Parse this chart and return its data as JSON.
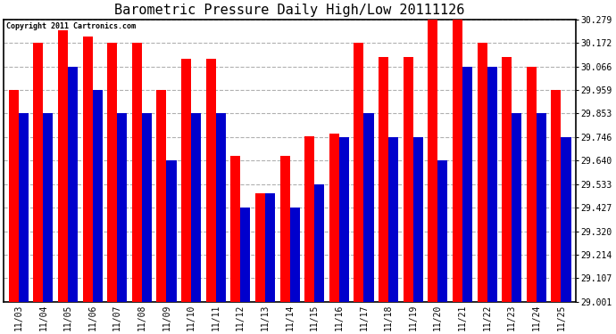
{
  "title": "Barometric Pressure Daily High/Low 20111126",
  "copyright_text": "Copyright 2011 Cartronics.com",
  "dates": [
    "11/03",
    "11/04",
    "11/05",
    "11/06",
    "11/07",
    "11/08",
    "11/09",
    "11/10",
    "11/11",
    "11/12",
    "11/13",
    "11/14",
    "11/15",
    "11/16",
    "11/17",
    "11/18",
    "11/19",
    "11/20",
    "11/21",
    "11/22",
    "11/23",
    "11/24",
    "11/25"
  ],
  "highs": [
    29.96,
    30.172,
    30.23,
    30.2,
    30.172,
    30.172,
    29.959,
    30.1,
    30.1,
    29.66,
    29.49,
    29.66,
    29.75,
    29.76,
    30.172,
    30.107,
    30.107,
    30.279,
    30.279,
    30.172,
    30.107,
    30.066,
    29.959
  ],
  "lows": [
    29.853,
    29.853,
    30.066,
    29.959,
    29.853,
    29.853,
    29.64,
    29.853,
    29.853,
    29.427,
    29.49,
    29.427,
    29.533,
    29.746,
    29.853,
    29.746,
    29.746,
    29.64,
    30.066,
    30.066,
    29.853,
    29.853,
    29.746
  ],
  "high_color": "#ff0000",
  "low_color": "#0000cc",
  "background_color": "#ffffff",
  "plot_bg_color": "#ffffff",
  "grid_color": "#b0b0b0",
  "ymin": 29.001,
  "ymax": 30.279,
  "yticks": [
    29.001,
    29.107,
    29.214,
    29.32,
    29.427,
    29.533,
    29.64,
    29.746,
    29.853,
    29.959,
    30.066,
    30.172,
    30.279
  ],
  "bar_width": 0.4,
  "title_fontsize": 11,
  "tick_fontsize": 7,
  "copyright_fontsize": 6
}
